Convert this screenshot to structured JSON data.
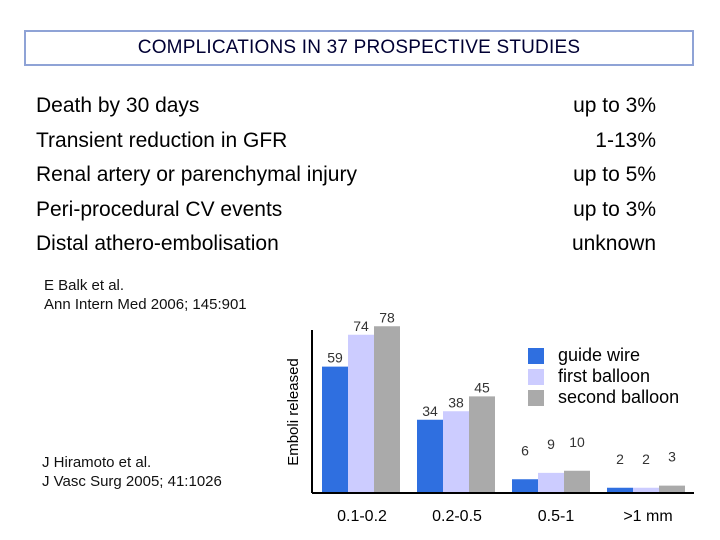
{
  "slide": {
    "title": "COMPLICATIONS IN 37 PROSPECTIVE STUDIES",
    "complications": [
      {
        "label": "Death by 30 days",
        "value": "up to 3%"
      },
      {
        "label": "Transient reduction in GFR",
        "value": "1-13%"
      },
      {
        "label": "Renal artery or parenchymal injury",
        "value": "up to 5%"
      },
      {
        "label": "Peri-procedural CV events",
        "value": "up to 3%"
      },
      {
        "label": "Distal athero-embolisation",
        "value": "unknown"
      }
    ],
    "ref_balk": [
      "E Balk et al.",
      "Ann Intern Med 2006; 145:901"
    ],
    "ref_hiramoto": [
      "J Hiramoto et al.",
      "J Vasc Surg 2005; 41:1026"
    ]
  },
  "chart_data": {
    "type": "bar",
    "ylabel": "Emboli released",
    "xlabel": "",
    "categories": [
      "0.1-0.2",
      "0.2-0.5",
      "0.5-1",
      ">1 mm"
    ],
    "series": [
      {
        "name": "guide wire",
        "values": [
          59,
          34,
          6,
          2
        ]
      },
      {
        "name": "first balloon",
        "values": [
          74,
          38,
          9,
          2
        ]
      },
      {
        "name": "second balloon",
        "values": [
          78,
          45,
          10,
          3
        ]
      }
    ],
    "colors": [
      "#2f6fe0",
      "#ccccff",
      "#aaaaaa"
    ],
    "legend_position": "top-right",
    "ylim": [
      0,
      80
    ]
  }
}
